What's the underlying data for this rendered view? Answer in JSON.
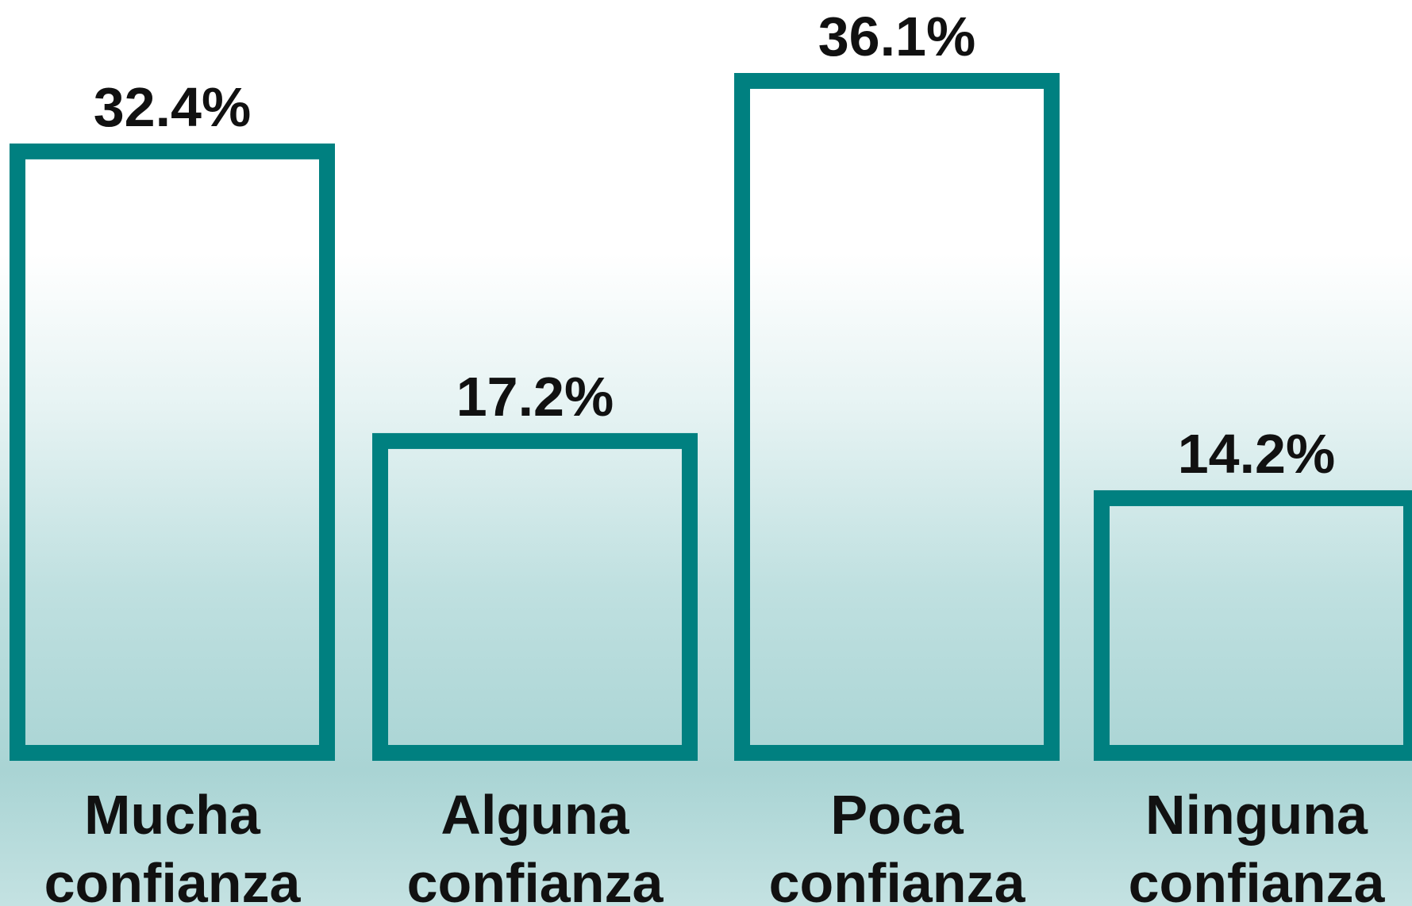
{
  "chart_data": {
    "type": "bar",
    "categories": [
      "Mucha confianza",
      "Alguna confianza",
      "Poca confianza",
      "Ninguna confianza"
    ],
    "values": [
      32.4,
      17.2,
      36.1,
      14.2
    ],
    "value_labels": [
      "32.4%",
      "17.2%",
      "36.1%",
      "14.2%"
    ],
    "color": "#008080"
  }
}
